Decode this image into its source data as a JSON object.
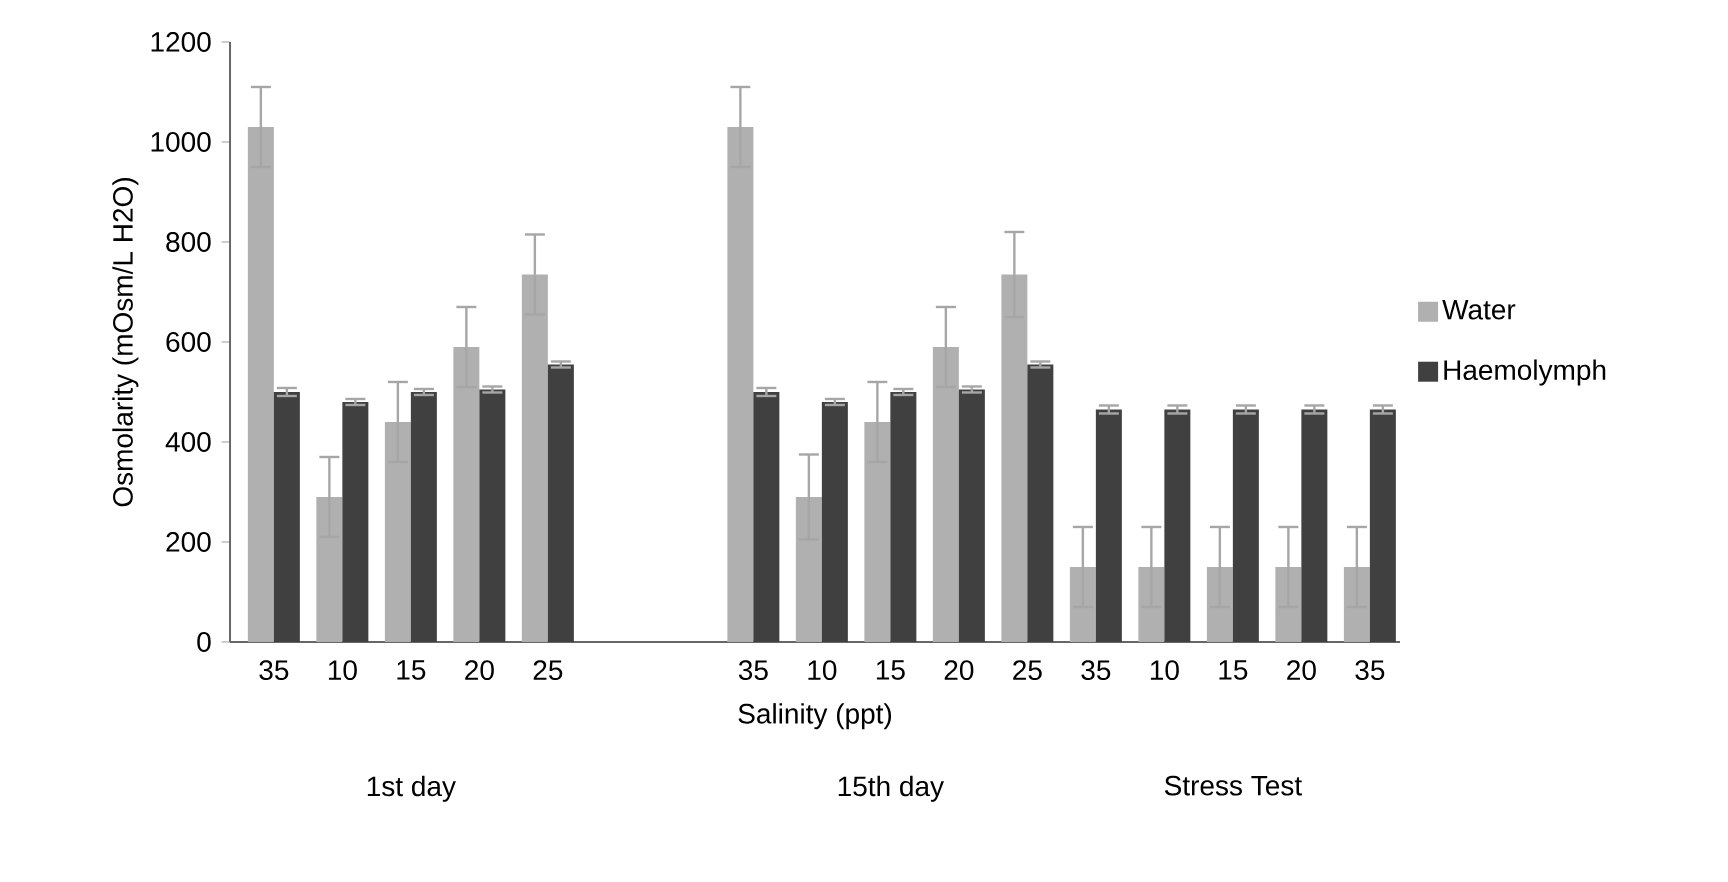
{
  "chart_data": {
    "type": "bar",
    "xlabel": "Salinity (ppt)",
    "ylabel": "Osmolarity (mOsm/L H2O)",
    "categories": [
      "35",
      "10",
      "15",
      "20",
      "25",
      null,
      null,
      "35",
      "10",
      "15",
      "20",
      "25",
      "35",
      "10",
      "15",
      "20",
      "35"
    ],
    "series": [
      {
        "name": "Water",
        "color": "#b0b0b0",
        "values": [
          1030,
          290,
          440,
          590,
          735,
          null,
          null,
          1030,
          290,
          440,
          590,
          735,
          150,
          150,
          150,
          150,
          150
        ],
        "errors": [
          80,
          80,
          80,
          80,
          80,
          null,
          null,
          80,
          85,
          80,
          80,
          85,
          80,
          80,
          80,
          80,
          80
        ]
      },
      {
        "name": "Haemolymph",
        "color": "#404040",
        "values": [
          500,
          480,
          500,
          505,
          555,
          null,
          null,
          500,
          480,
          500,
          505,
          555,
          465,
          465,
          465,
          465,
          465
        ],
        "errors": [
          8,
          6,
          6,
          6,
          6,
          null,
          null,
          8,
          6,
          6,
          6,
          6,
          8,
          8,
          8,
          8,
          8
        ]
      }
    ],
    "ylim": [
      0,
      1200
    ],
    "yticks": [
      0,
      200,
      400,
      600,
      800,
      1000,
      1200
    ],
    "legend": "right",
    "annotations": [
      "1st day",
      "15th day",
      "Stress Test"
    ]
  }
}
